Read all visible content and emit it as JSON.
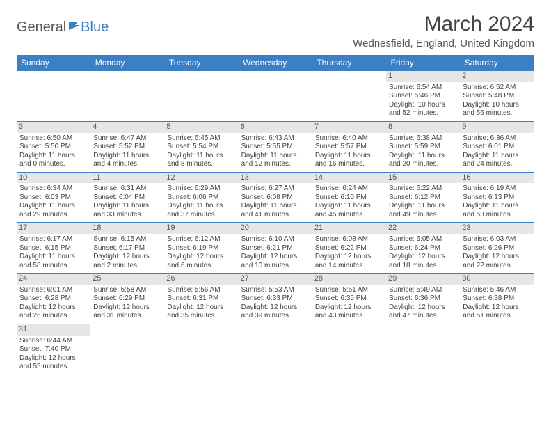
{
  "logo": {
    "part1": "General",
    "part2": "Blue"
  },
  "title": "March 2024",
  "location": "Wednesfield, England, United Kingdom",
  "colors": {
    "header_bg": "#3b7fc4",
    "header_text": "#ffffff",
    "border": "#3b7fc4",
    "daynum_bg": "#e6e6e6",
    "text": "#444444"
  },
  "weekdays": [
    "Sunday",
    "Monday",
    "Tuesday",
    "Wednesday",
    "Thursday",
    "Friday",
    "Saturday"
  ],
  "first_weekday_index": 5,
  "days": [
    {
      "n": 1,
      "sr": "6:54 AM",
      "ss": "5:46 PM",
      "dl": "10 hours and 52 minutes."
    },
    {
      "n": 2,
      "sr": "6:52 AM",
      "ss": "5:48 PM",
      "dl": "10 hours and 56 minutes."
    },
    {
      "n": 3,
      "sr": "6:50 AM",
      "ss": "5:50 PM",
      "dl": "11 hours and 0 minutes."
    },
    {
      "n": 4,
      "sr": "6:47 AM",
      "ss": "5:52 PM",
      "dl": "11 hours and 4 minutes."
    },
    {
      "n": 5,
      "sr": "6:45 AM",
      "ss": "5:54 PM",
      "dl": "11 hours and 8 minutes."
    },
    {
      "n": 6,
      "sr": "6:43 AM",
      "ss": "5:55 PM",
      "dl": "11 hours and 12 minutes."
    },
    {
      "n": 7,
      "sr": "6:40 AM",
      "ss": "5:57 PM",
      "dl": "11 hours and 16 minutes."
    },
    {
      "n": 8,
      "sr": "6:38 AM",
      "ss": "5:59 PM",
      "dl": "11 hours and 20 minutes."
    },
    {
      "n": 9,
      "sr": "6:36 AM",
      "ss": "6:01 PM",
      "dl": "11 hours and 24 minutes."
    },
    {
      "n": 10,
      "sr": "6:34 AM",
      "ss": "6:03 PM",
      "dl": "11 hours and 29 minutes."
    },
    {
      "n": 11,
      "sr": "6:31 AM",
      "ss": "6:04 PM",
      "dl": "11 hours and 33 minutes."
    },
    {
      "n": 12,
      "sr": "6:29 AM",
      "ss": "6:06 PM",
      "dl": "11 hours and 37 minutes."
    },
    {
      "n": 13,
      "sr": "6:27 AM",
      "ss": "6:08 PM",
      "dl": "11 hours and 41 minutes."
    },
    {
      "n": 14,
      "sr": "6:24 AM",
      "ss": "6:10 PM",
      "dl": "11 hours and 45 minutes."
    },
    {
      "n": 15,
      "sr": "6:22 AM",
      "ss": "6:12 PM",
      "dl": "11 hours and 49 minutes."
    },
    {
      "n": 16,
      "sr": "6:19 AM",
      "ss": "6:13 PM",
      "dl": "11 hours and 53 minutes."
    },
    {
      "n": 17,
      "sr": "6:17 AM",
      "ss": "6:15 PM",
      "dl": "11 hours and 58 minutes."
    },
    {
      "n": 18,
      "sr": "6:15 AM",
      "ss": "6:17 PM",
      "dl": "12 hours and 2 minutes."
    },
    {
      "n": 19,
      "sr": "6:12 AM",
      "ss": "6:19 PM",
      "dl": "12 hours and 6 minutes."
    },
    {
      "n": 20,
      "sr": "6:10 AM",
      "ss": "6:21 PM",
      "dl": "12 hours and 10 minutes."
    },
    {
      "n": 21,
      "sr": "6:08 AM",
      "ss": "6:22 PM",
      "dl": "12 hours and 14 minutes."
    },
    {
      "n": 22,
      "sr": "6:05 AM",
      "ss": "6:24 PM",
      "dl": "12 hours and 18 minutes."
    },
    {
      "n": 23,
      "sr": "6:03 AM",
      "ss": "6:26 PM",
      "dl": "12 hours and 22 minutes."
    },
    {
      "n": 24,
      "sr": "6:01 AM",
      "ss": "6:28 PM",
      "dl": "12 hours and 26 minutes."
    },
    {
      "n": 25,
      "sr": "5:58 AM",
      "ss": "6:29 PM",
      "dl": "12 hours and 31 minutes."
    },
    {
      "n": 26,
      "sr": "5:56 AM",
      "ss": "6:31 PM",
      "dl": "12 hours and 35 minutes."
    },
    {
      "n": 27,
      "sr": "5:53 AM",
      "ss": "6:33 PM",
      "dl": "12 hours and 39 minutes."
    },
    {
      "n": 28,
      "sr": "5:51 AM",
      "ss": "6:35 PM",
      "dl": "12 hours and 43 minutes."
    },
    {
      "n": 29,
      "sr": "5:49 AM",
      "ss": "6:36 PM",
      "dl": "12 hours and 47 minutes."
    },
    {
      "n": 30,
      "sr": "5:46 AM",
      "ss": "6:38 PM",
      "dl": "12 hours and 51 minutes."
    },
    {
      "n": 31,
      "sr": "6:44 AM",
      "ss": "7:40 PM",
      "dl": "12 hours and 55 minutes."
    }
  ],
  "labels": {
    "sunrise": "Sunrise:",
    "sunset": "Sunset:",
    "daylight": "Daylight:"
  }
}
